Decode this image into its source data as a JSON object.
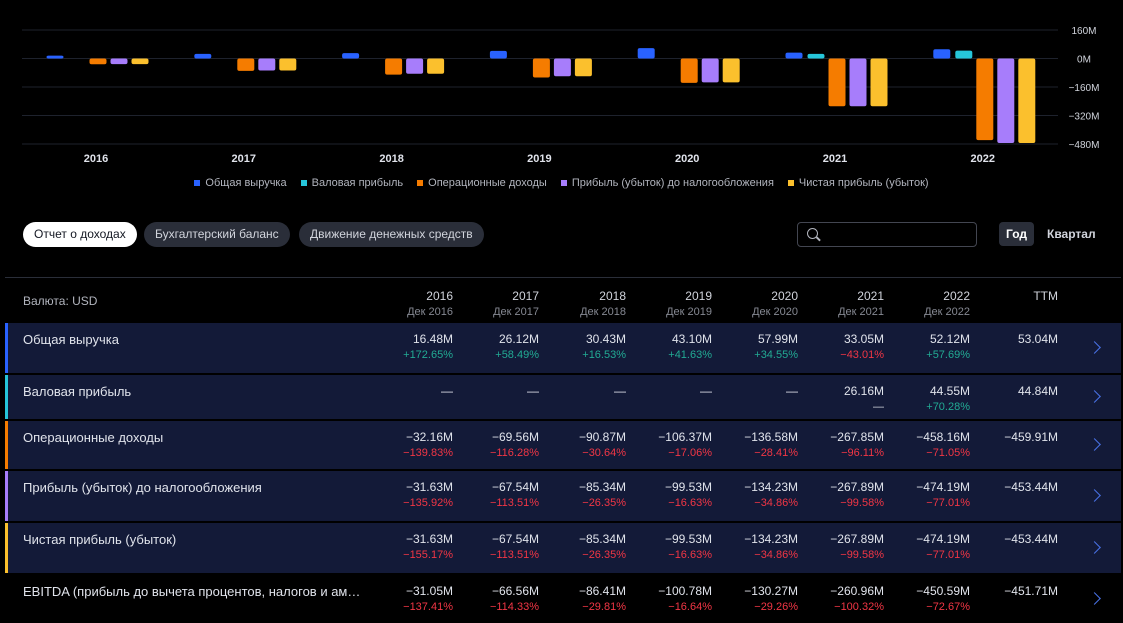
{
  "chart_data": {
    "type": "bar",
    "categories": [
      "2016",
      "2017",
      "2018",
      "2019",
      "2020",
      "2021",
      "2022"
    ],
    "series": [
      {
        "name": "Общая выручка",
        "color": "#2962ff",
        "values": [
          16.48,
          26.12,
          30.43,
          43.1,
          57.99,
          33.05,
          52.12
        ]
      },
      {
        "name": "Валовая прибыль",
        "color": "#26c6da",
        "values": [
          null,
          null,
          null,
          null,
          null,
          26.16,
          44.55
        ]
      },
      {
        "name": "Операционные доходы",
        "color": "#f57c00",
        "values": [
          -32.16,
          -69.56,
          -90.87,
          -106.37,
          -136.58,
          -267.85,
          -458.16
        ]
      },
      {
        "name": "Прибыль (убыток) до налогообложения",
        "color": "#a77dfb",
        "values": [
          -31.63,
          -67.54,
          -85.34,
          -99.53,
          -134.23,
          -267.89,
          -474.19
        ]
      },
      {
        "name": "Чистая прибыль (убыток)",
        "color": "#fbc02d",
        "values": [
          -31.63,
          -67.54,
          -85.34,
          -99.53,
          -134.23,
          -267.89,
          -474.19
        ]
      }
    ],
    "ylim": [
      -480,
      160
    ],
    "yticks": [
      "160M",
      "0M",
      "−160M",
      "−320M",
      "−480M"
    ],
    "ytick_values": [
      160,
      0,
      -160,
      -320,
      -480
    ],
    "grid": true,
    "legend_position": "bottom"
  },
  "tabs": [
    {
      "label": "Отчет о доходах",
      "active": true
    },
    {
      "label": "Бухгалтерский баланс",
      "active": false
    },
    {
      "label": "Движение денежных средств",
      "active": false
    }
  ],
  "search": {
    "placeholder": ""
  },
  "period": {
    "year_label": "Год",
    "quarter_label": "Квартал"
  },
  "table": {
    "currency_label": "Валюта: USD",
    "columns": [
      {
        "year": "2016",
        "sub": "Дек 2016"
      },
      {
        "year": "2017",
        "sub": "Дек 2017"
      },
      {
        "year": "2018",
        "sub": "Дек 2018"
      },
      {
        "year": "2019",
        "sub": "Дек 2019"
      },
      {
        "year": "2020",
        "sub": "Дек 2020"
      },
      {
        "year": "2021",
        "sub": "Дек 2021"
      },
      {
        "year": "2022",
        "sub": "Дек 2022"
      },
      {
        "year": "TTM",
        "sub": ""
      }
    ],
    "rows": [
      {
        "label": "Общая выручка",
        "accent": "#2962ff",
        "values": [
          "16.48M",
          "26.12M",
          "30.43M",
          "43.10M",
          "57.99M",
          "33.05M",
          "52.12M",
          "53.04M"
        ],
        "changes": [
          "+172.65%",
          "+58.49%",
          "+16.53%",
          "+41.63%",
          "+34.55%",
          "−43.01%",
          "+57.69%",
          ""
        ]
      },
      {
        "label": "Валовая прибыль",
        "accent": "#26c6da",
        "values": [
          "—",
          "—",
          "—",
          "—",
          "—",
          "26.16M",
          "44.55M",
          "44.84M"
        ],
        "changes": [
          "",
          "",
          "",
          "",
          "",
          "—",
          "+70.28%",
          ""
        ]
      },
      {
        "label": "Операционные доходы",
        "accent": "#f57c00",
        "values": [
          "−32.16M",
          "−69.56M",
          "−90.87M",
          "−106.37M",
          "−136.58M",
          "−267.85M",
          "−458.16M",
          "−459.91M"
        ],
        "changes": [
          "−139.83%",
          "−116.28%",
          "−30.64%",
          "−17.06%",
          "−28.41%",
          "−96.11%",
          "−71.05%",
          ""
        ]
      },
      {
        "label": "Прибыль (убыток) до налогообложения",
        "accent": "#a77dfb",
        "values": [
          "−31.63M",
          "−67.54M",
          "−85.34M",
          "−99.53M",
          "−134.23M",
          "−267.89M",
          "−474.19M",
          "−453.44M"
        ],
        "changes": [
          "−135.92%",
          "−113.51%",
          "−26.35%",
          "−16.63%",
          "−34.86%",
          "−99.58%",
          "−77.01%",
          ""
        ]
      },
      {
        "label": "Чистая прибыль (убыток)",
        "accent": "#fbc02d",
        "values": [
          "−31.63M",
          "−67.54M",
          "−85.34M",
          "−99.53M",
          "−134.23M",
          "−267.89M",
          "−474.19M",
          "−453.44M"
        ],
        "changes": [
          "−155.17%",
          "−113.51%",
          "−26.35%",
          "−16.63%",
          "−34.86%",
          "−99.58%",
          "−77.01%",
          ""
        ]
      },
      {
        "label": "EBITDA (прибыль до вычета процентов, налогов и аморт…",
        "accent": "",
        "values": [
          "−31.05M",
          "−66.56M",
          "−86.41M",
          "−100.78M",
          "−130.27M",
          "−260.96M",
          "−450.59M",
          "−451.71M"
        ],
        "changes": [
          "−137.41%",
          "−114.33%",
          "−29.81%",
          "−16.64%",
          "−29.26%",
          "−100.32%",
          "−72.67%",
          ""
        ]
      }
    ]
  }
}
